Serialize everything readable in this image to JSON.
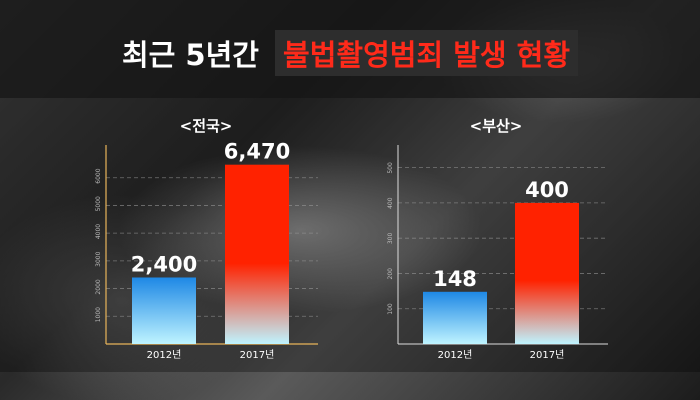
{
  "title": {
    "plain": "최근 5년간",
    "highlight": "불법촬영범죄 발생 현황"
  },
  "colors": {
    "bar_2012_top": "#1e88e5",
    "bar_2012_bottom": "#bff4ff",
    "bar_2017_top": "#ff2200",
    "bar_2017_bottom": "#bff4ff",
    "highlight_text": "#ff2a1a"
  },
  "chart_data": [
    {
      "type": "bar",
      "title": "<전국>",
      "categories": [
        "2012년",
        "2017년"
      ],
      "values": [
        2400,
        6470
      ],
      "value_labels": [
        "2,400",
        "6,470"
      ],
      "yticks": [
        1000,
        2000,
        3000,
        4000,
        5000,
        6000
      ],
      "ylim": [
        0,
        7000
      ],
      "grid": true
    },
    {
      "type": "bar",
      "title": "<부산>",
      "categories": [
        "2012년",
        "2017년"
      ],
      "values": [
        148,
        400
      ],
      "value_labels": [
        "148",
        "400"
      ],
      "yticks": [
        100,
        200,
        300,
        400,
        500
      ],
      "ylim": [
        0,
        550
      ],
      "grid": true
    }
  ]
}
